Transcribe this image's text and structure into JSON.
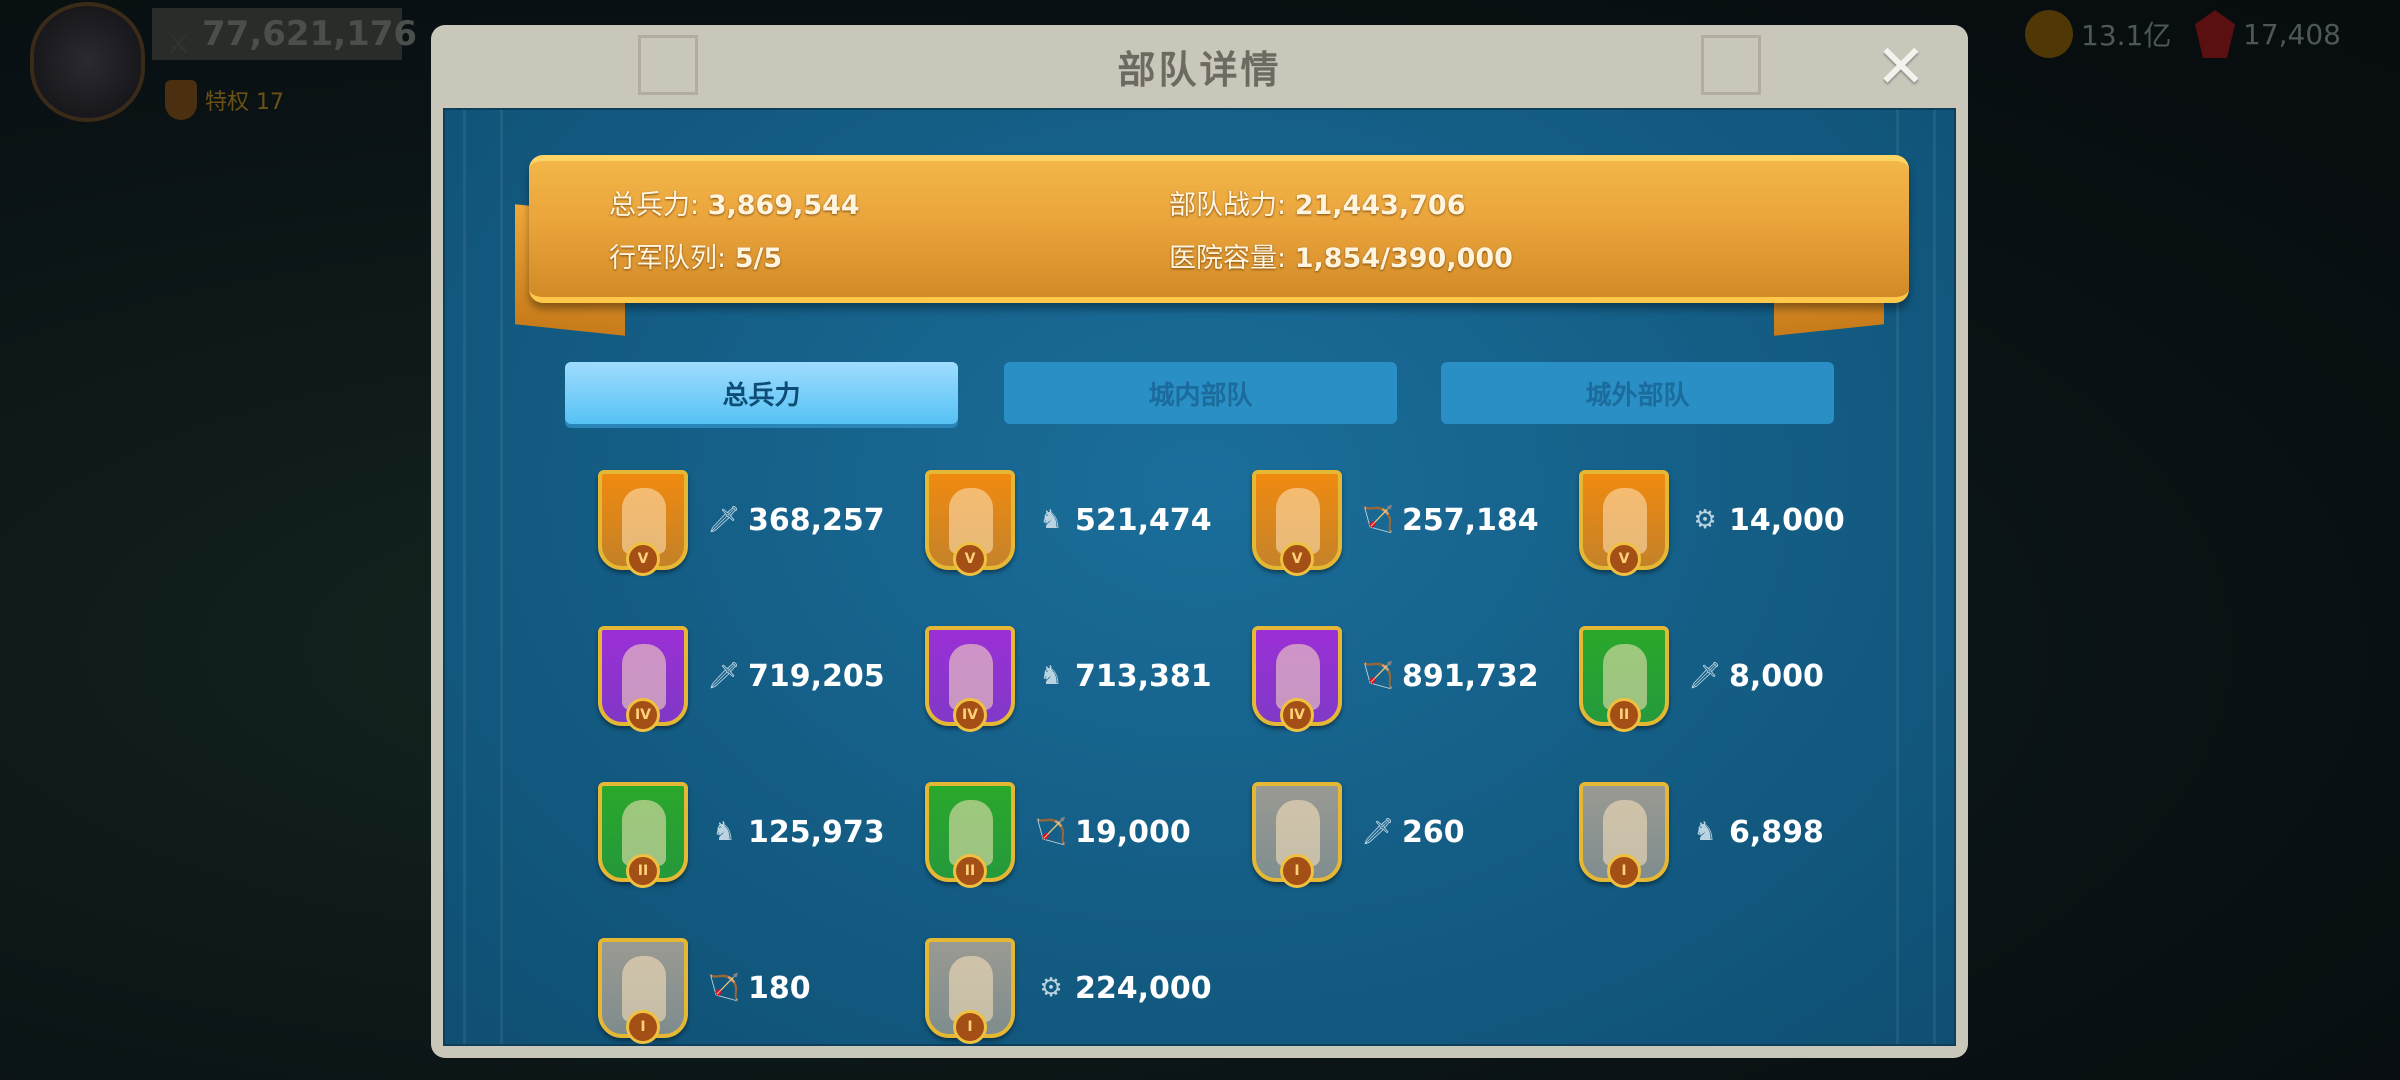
{
  "hud": {
    "power": "77,621,176",
    "vip": "特权 17",
    "gold": "13.1亿",
    "gems": "17,408"
  },
  "modal": {
    "title": "部队详情",
    "close_icon": "close-icon"
  },
  "summary": {
    "total_troops_label": "总兵力:",
    "total_troops": "3,869,544",
    "troop_power_label": "部队战力:",
    "troop_power": "21,443,706",
    "march_queue_label": "行军队列:",
    "march_queue": "5/5",
    "hospital_label": "医院容量:",
    "hospital": "1,854/390,000"
  },
  "tabs": [
    {
      "label": "总兵力",
      "active": true
    },
    {
      "label": "城内部队",
      "active": false
    },
    {
      "label": "城外部队",
      "active": false
    }
  ],
  "colors": {
    "tier5": "#f08a10",
    "tier4": "#9b2fd6",
    "tier2": "#2aa82a",
    "tier1": "#9a9a92",
    "accent": "#e9a23a"
  },
  "units": [
    {
      "tier": "V",
      "type": "infantry",
      "count": "368,257"
    },
    {
      "tier": "V",
      "type": "cavalry",
      "count": "521,474"
    },
    {
      "tier": "V",
      "type": "archer",
      "count": "257,184"
    },
    {
      "tier": "V",
      "type": "siege",
      "count": "14,000"
    },
    {
      "tier": "IV",
      "type": "infantry",
      "count": "719,205"
    },
    {
      "tier": "IV",
      "type": "cavalry",
      "count": "713,381"
    },
    {
      "tier": "IV",
      "type": "archer",
      "count": "891,732"
    },
    {
      "tier": "II",
      "type": "infantry",
      "count": "8,000"
    },
    {
      "tier": "II",
      "type": "cavalry",
      "count": "125,973"
    },
    {
      "tier": "II",
      "type": "archer",
      "count": "19,000"
    },
    {
      "tier": "I",
      "type": "infantry",
      "count": "260"
    },
    {
      "tier": "I",
      "type": "cavalry",
      "count": "6,898"
    },
    {
      "tier": "I",
      "type": "archer",
      "count": "180"
    },
    {
      "tier": "I",
      "type": "siege",
      "count": "224,000"
    }
  ]
}
